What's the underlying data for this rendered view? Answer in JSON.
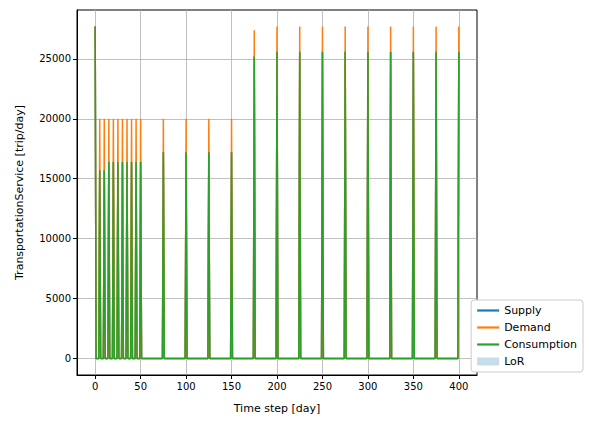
{
  "chart_data": {
    "type": "line",
    "x_label": "Time step [day]",
    "y_label": "TransportationService [trip/day]",
    "x": [
      0,
      1,
      4,
      5,
      6,
      9,
      10,
      11,
      14,
      15,
      16,
      19,
      20,
      21,
      24,
      25,
      26,
      29,
      30,
      31,
      34,
      35,
      36,
      39,
      40,
      41,
      44,
      45,
      46,
      49,
      50,
      51,
      74,
      75,
      76,
      99,
      100,
      101,
      124,
      125,
      126,
      149,
      150,
      151,
      174,
      175,
      176,
      199,
      200,
      201,
      224,
      225,
      226,
      249,
      250,
      251,
      274,
      275,
      276,
      299,
      300,
      301,
      324,
      325,
      326,
      349,
      350,
      351,
      374,
      375,
      376,
      399,
      400
    ],
    "series": [
      {
        "name": "Supply",
        "color": "#1f77b4",
        "type": "line",
        "values": [
          27700,
          0,
          0,
          15700,
          0,
          0,
          15700,
          0,
          0,
          16400,
          0,
          0,
          16400,
          0,
          0,
          16400,
          0,
          0,
          16400,
          0,
          0,
          16400,
          0,
          0,
          16400,
          0,
          0,
          16400,
          0,
          0,
          16400,
          0,
          0,
          17200,
          0,
          0,
          17200,
          0,
          0,
          17200,
          0,
          0,
          17200,
          0,
          0,
          25200,
          0,
          0,
          25600,
          0,
          0,
          25600,
          0,
          0,
          25600,
          0,
          0,
          25600,
          0,
          0,
          25600,
          0,
          0,
          25600,
          0,
          0,
          25600,
          0,
          0,
          25600,
          0,
          0,
          25600
        ]
      },
      {
        "name": "Demand",
        "color": "#ff7f0e",
        "type": "line",
        "values": [
          27700,
          0,
          0,
          20000,
          0,
          0,
          20000,
          0,
          0,
          20000,
          0,
          0,
          20000,
          0,
          0,
          20000,
          0,
          0,
          20000,
          0,
          0,
          20000,
          0,
          0,
          20000,
          0,
          0,
          20000,
          0,
          0,
          20000,
          0,
          0,
          20000,
          0,
          0,
          20000,
          0,
          0,
          20000,
          0,
          0,
          20000,
          0,
          0,
          27400,
          0,
          0,
          27700,
          0,
          0,
          27700,
          0,
          0,
          27700,
          0,
          0,
          27700,
          0,
          0,
          27700,
          0,
          0,
          27700,
          0,
          0,
          27700,
          0,
          0,
          27700,
          0,
          0,
          27700
        ]
      },
      {
        "name": "Consumption",
        "color": "#2ca02c",
        "type": "line",
        "values": [
          27700,
          0,
          0,
          15700,
          0,
          0,
          15700,
          0,
          0,
          16400,
          0,
          0,
          16400,
          0,
          0,
          16400,
          0,
          0,
          16400,
          0,
          0,
          16400,
          0,
          0,
          16400,
          0,
          0,
          16400,
          0,
          0,
          16400,
          0,
          0,
          17200,
          0,
          0,
          17200,
          0,
          0,
          17200,
          0,
          0,
          17200,
          0,
          0,
          25200,
          0,
          0,
          25600,
          0,
          0,
          25600,
          0,
          0,
          25600,
          0,
          0,
          25600,
          0,
          0,
          25600,
          0,
          0,
          25600,
          0,
          0,
          25600,
          0,
          0,
          25600,
          0,
          0,
          25600
        ]
      },
      {
        "name": "LoR",
        "color": "#1f77b4",
        "type": "area",
        "values": [
          0,
          0,
          0,
          0,
          0,
          0,
          0,
          0,
          0,
          0,
          0,
          0,
          0,
          0,
          0,
          0,
          0,
          0,
          0,
          0,
          0,
          0,
          0,
          0,
          0,
          0,
          0,
          0,
          0,
          0,
          0,
          0,
          0,
          0,
          0,
          0,
          0,
          0,
          0,
          0,
          0,
          0,
          0,
          0,
          0,
          0,
          0,
          0,
          0,
          0,
          0,
          0,
          0,
          0,
          0,
          0,
          0,
          0,
          0,
          0,
          0,
          0,
          0,
          0,
          0,
          0,
          0,
          0,
          0,
          0,
          0,
          0,
          0
        ]
      }
    ],
    "xlim": [
      -20,
      420
    ],
    "ylim": [
      -1385,
      29085
    ],
    "xticks": [
      0,
      50,
      100,
      150,
      200,
      250,
      300,
      350,
      400
    ],
    "yticks": [
      0,
      5000,
      10000,
      15000,
      20000,
      25000
    ],
    "grid": true,
    "legend": "lower right"
  }
}
